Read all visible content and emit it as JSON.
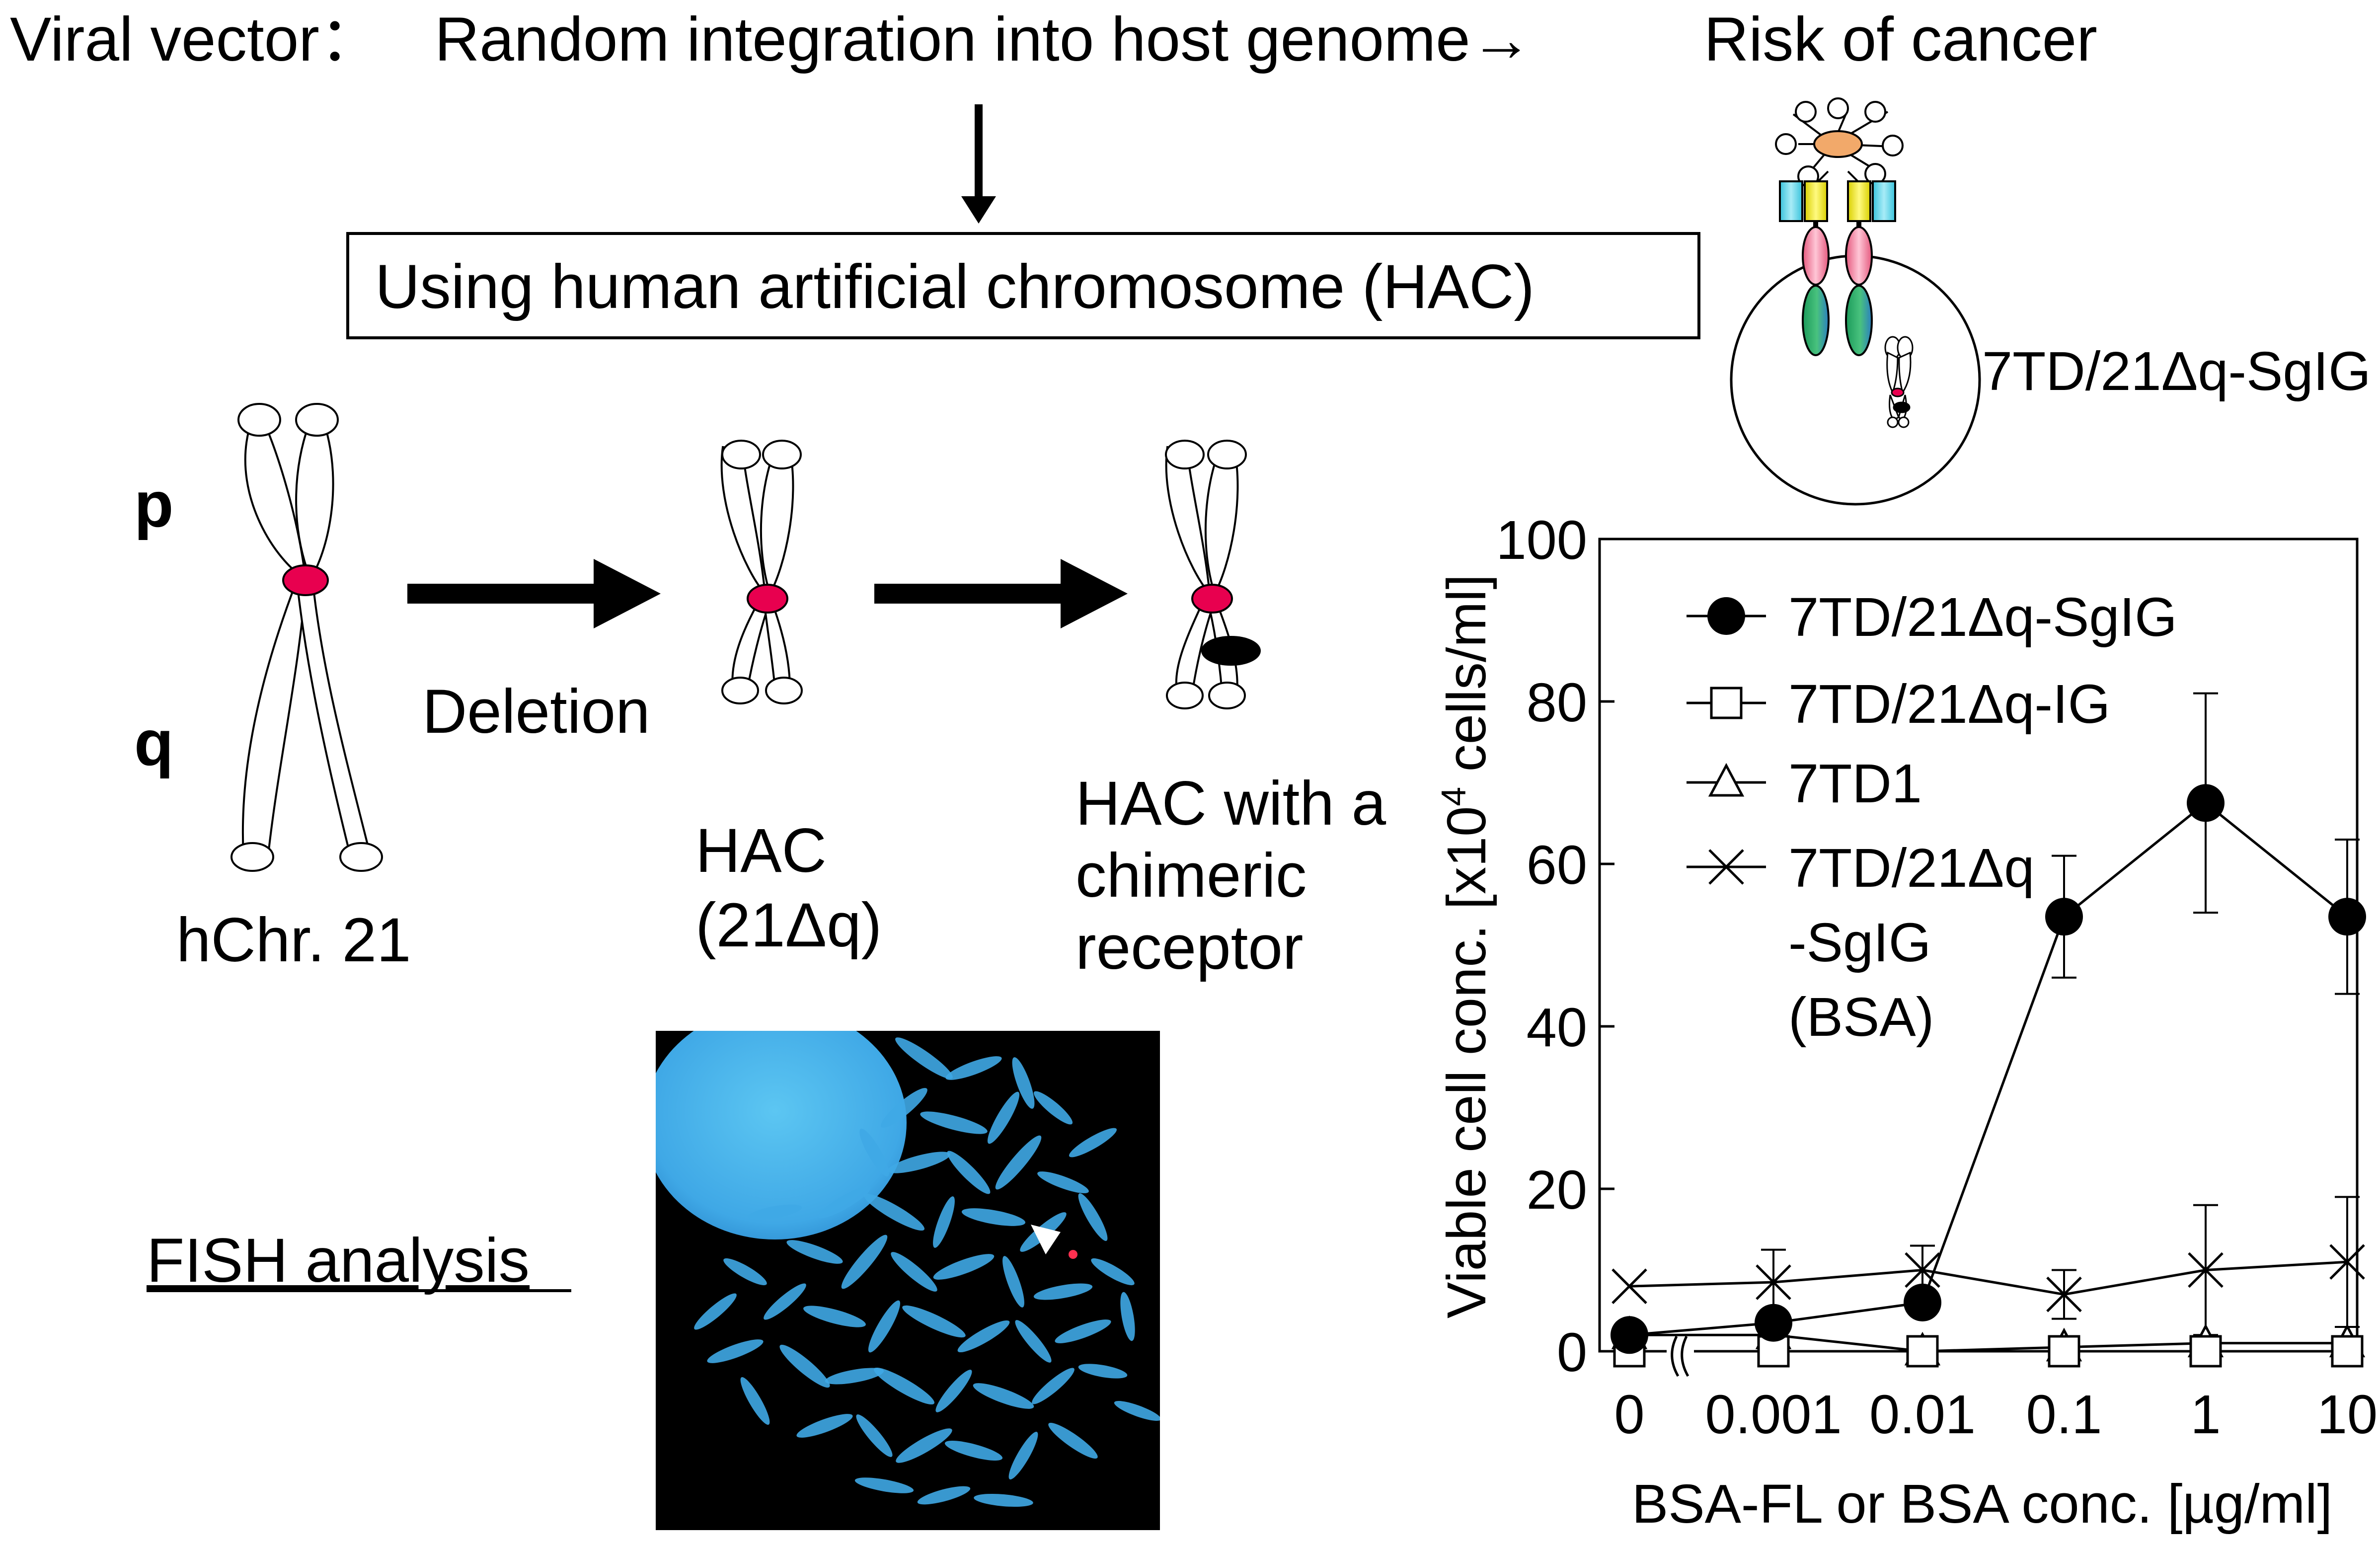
{
  "header": {
    "viral_vector_label": "Viral vector：",
    "random_integration": "Random integration into host genome→",
    "risk": "Risk of cancer"
  },
  "hac_box": {
    "label": "Using human artificial chromosome (HAC)"
  },
  "cell_label": "7TD/21Δq-SgIG",
  "chromosomes": {
    "p_label": "p",
    "q_label": "q",
    "deletion_label": "Deletion",
    "hchr21_label": "hChr. 21",
    "hac_line1": "HAC",
    "hac_line2": "(21Δq)",
    "hac_receptor_line1": "HAC with a",
    "hac_receptor_line2": "chimeric",
    "hac_receptor_line3": "receptor"
  },
  "fish": {
    "label": "FISH analysis"
  },
  "colors": {
    "centromere": "#e8004f",
    "receptor_pink": "#e4587d",
    "receptor_green": "#2eae6e",
    "receptor_cyan": "#41c8e0",
    "receptor_yellow": "#e6dc00",
    "receptor_orange": "#f2a96a",
    "fish_background": "#000000",
    "fish_chromosome": "#3fa8e6"
  },
  "chart_data": {
    "type": "line",
    "title": "",
    "xlabel": "BSA-FL or BSA conc. [µg/ml]",
    "ylabel_prefix": "Viable cell conc. [x10",
    "ylabel_sup": "4",
    "ylabel_suffix": " cells/ml]",
    "x_scale": "log (0 plotted on a broken axis)",
    "categories": [
      "0",
      "0.001",
      "0.01",
      "0.1",
      "1",
      "10"
    ],
    "y_ticks": [
      "0",
      "20",
      "40",
      "60",
      "80",
      "100"
    ],
    "ylim": [
      0,
      100
    ],
    "legend_placement": "top-left",
    "series": [
      {
        "name": "7TD/21Δq-SgIG",
        "marker": "filled-circle",
        "values": [
          2,
          3.5,
          6,
          53.5,
          67.5,
          53.5
        ],
        "err": [
          0,
          0,
          0,
          7.5,
          13.5,
          9.5
        ]
      },
      {
        "name": "7TD/21Δq-IG",
        "marker": "open-square",
        "values": [
          0,
          0,
          0,
          0,
          0,
          0
        ],
        "err": [
          0,
          0,
          0,
          0,
          0,
          0
        ]
      },
      {
        "name": "7TD1",
        "marker": "open-triangle",
        "values": [
          2,
          2,
          0,
          0.5,
          1,
          1
        ],
        "err": [
          0,
          0,
          0,
          0,
          0,
          0
        ]
      },
      {
        "name": "7TD/21Δq -SgIG (BSA)",
        "marker": "cross",
        "values": [
          8,
          8.5,
          10,
          7,
          10,
          11
        ],
        "err": [
          0,
          4,
          3,
          3,
          8,
          8
        ]
      }
    ],
    "legend_lines": [
      [
        "7TD/21Δq-SgIG"
      ],
      [
        "7TD/21Δq-IG"
      ],
      [
        "7TD1"
      ],
      [
        "7TD/21Δq",
        "-SgIG",
        "(BSA)"
      ]
    ]
  }
}
